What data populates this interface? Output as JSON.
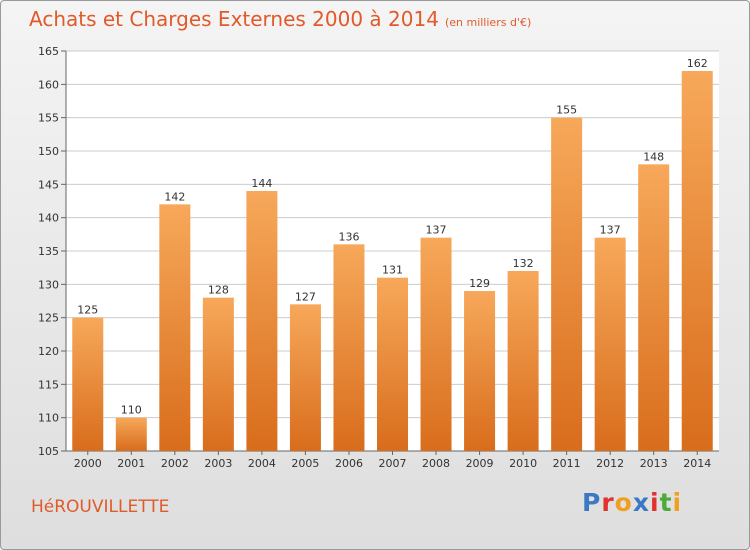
{
  "title": "Achats et Charges Externes 2000 à 2014",
  "unit": "(en milliers d'€)",
  "commune": "HéROUVILLETTE",
  "logo": {
    "letters": [
      "P",
      "r",
      "o",
      "x",
      "i",
      "t",
      "i"
    ]
  },
  "colors": {
    "title": "#e05a2a",
    "bar_top": "#f7a85a",
    "bar_bottom": "#d86d1c",
    "logo": [
      "#3d78c4",
      "#e0322e",
      "#f0a020",
      "#3d78c4",
      "#e0322e",
      "#4caa3c",
      "#f0a020"
    ]
  },
  "chart_data": {
    "type": "bar",
    "categories": [
      "2000",
      "2001",
      "2002",
      "2003",
      "2004",
      "2005",
      "2006",
      "2007",
      "2008",
      "2009",
      "2010",
      "2011",
      "2012",
      "2013",
      "2014"
    ],
    "values": [
      125,
      110,
      142,
      128,
      144,
      127,
      136,
      131,
      137,
      129,
      132,
      155,
      137,
      148,
      162
    ],
    "ylim": [
      105,
      165
    ],
    "yticks": [
      105,
      110,
      115,
      120,
      125,
      130,
      135,
      140,
      145,
      150,
      155,
      160,
      165
    ],
    "grid": true
  }
}
